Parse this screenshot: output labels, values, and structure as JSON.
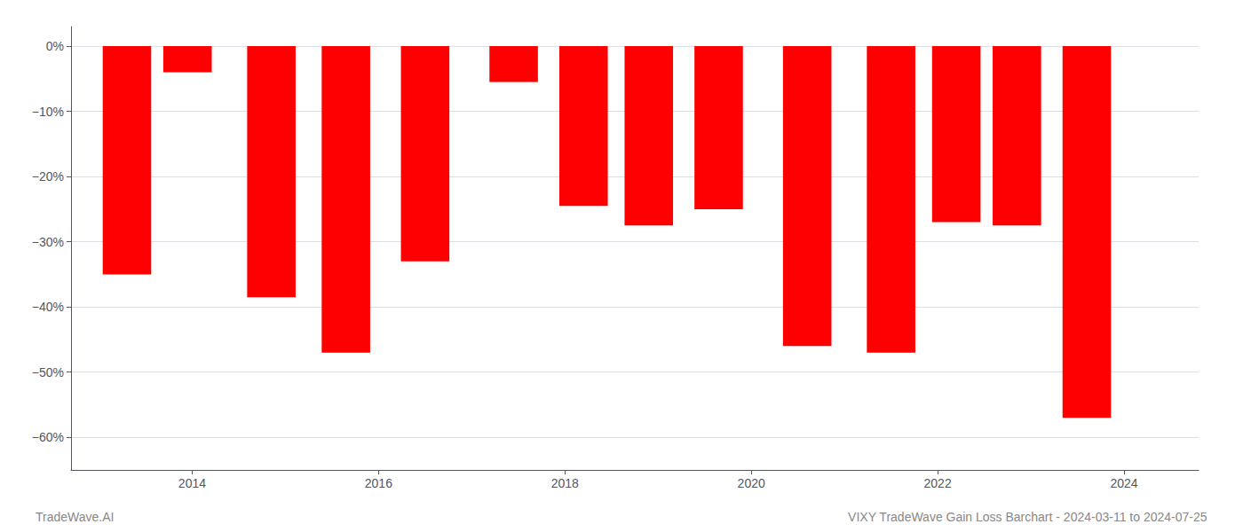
{
  "chart_data": {
    "type": "bar",
    "x": [
      2013.3,
      2013.95,
      2014.85,
      2015.65,
      2016.5,
      2017.45,
      2018.2,
      2018.9,
      2019.65,
      2020.6,
      2021.5,
      2022.2,
      2022.85,
      2023.6
    ],
    "values": [
      -35.0,
      -4.0,
      -38.5,
      -47.0,
      -33.0,
      -5.5,
      -24.5,
      -27.5,
      -25.0,
      -46.0,
      -47.0,
      -27.0,
      -27.5,
      -57.0
    ],
    "color": "#ff0000",
    "xlim": [
      2012.7,
      2024.8
    ],
    "xticks": [
      2014,
      2016,
      2018,
      2020,
      2022,
      2024
    ],
    "ylim": [
      -65,
      3
    ],
    "yticks": [
      {
        "value": 0,
        "label": "0%"
      },
      {
        "value": -10,
        "label": "−10%"
      },
      {
        "value": -20,
        "label": "−20%"
      },
      {
        "value": -30,
        "label": "−30%"
      },
      {
        "value": -40,
        "label": "−40%"
      },
      {
        "value": -50,
        "label": "−50%"
      },
      {
        "value": -60,
        "label": "−60%"
      }
    ],
    "grid": true,
    "annotations": [
      "TradeWave.AI",
      "VIXY TradeWave Gain Loss Barchart - 2024-03-11 to 2024-07-25"
    ]
  }
}
